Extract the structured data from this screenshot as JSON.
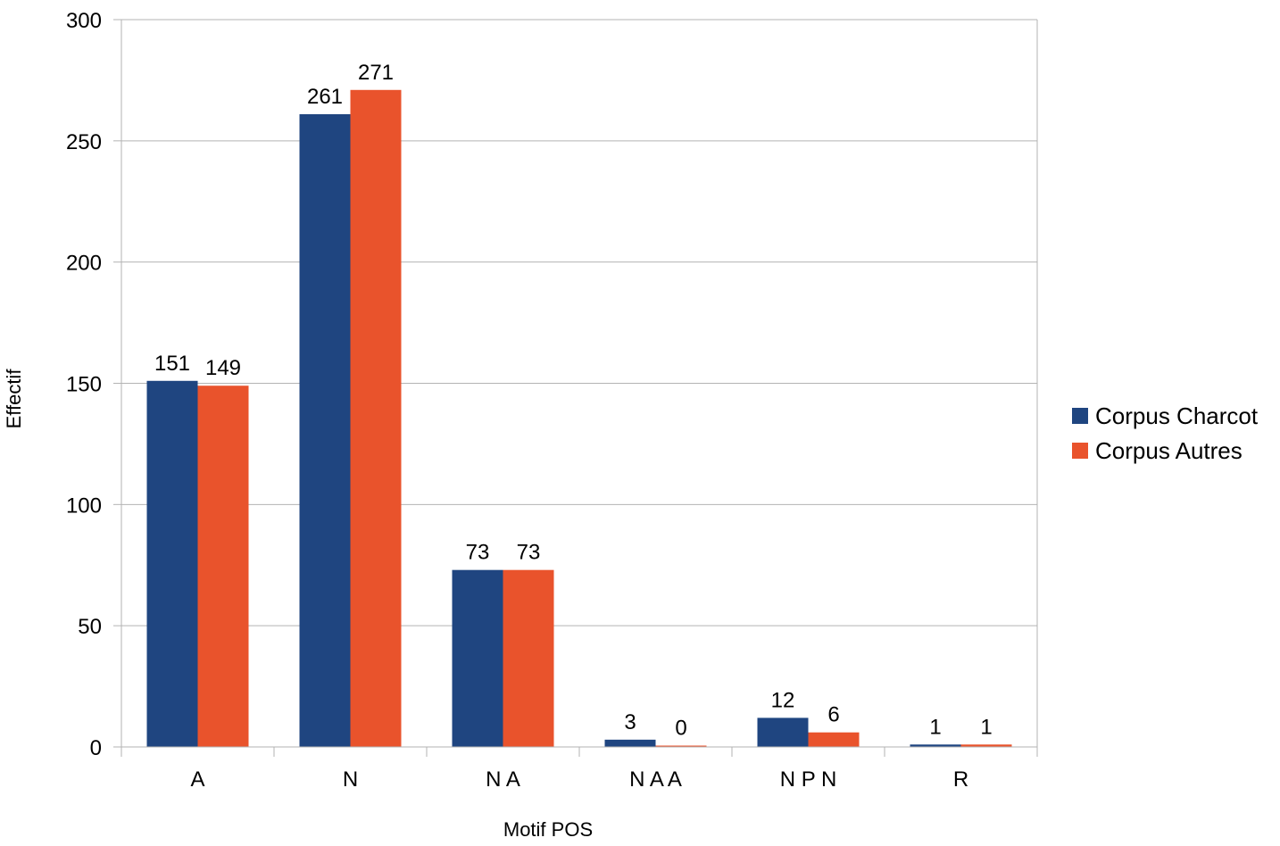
{
  "chart_data": {
    "type": "bar",
    "xlabel": "Motif POS",
    "ylabel": "Effectif",
    "ylim": [
      0,
      300
    ],
    "yticks": [
      0,
      50,
      100,
      150,
      200,
      250,
      300
    ],
    "grid": true,
    "legend_position": "right",
    "categories": [
      "A",
      "N",
      "N A",
      "N A A",
      "N P N",
      "R"
    ],
    "series": [
      {
        "name": "Corpus Charcot",
        "color": "#1f4580",
        "values": [
          151,
          261,
          73,
          3,
          12,
          1
        ]
      },
      {
        "name": "Corpus Autres",
        "color": "#e9532c",
        "values": [
          149,
          271,
          73,
          0,
          6,
          1
        ]
      }
    ]
  }
}
